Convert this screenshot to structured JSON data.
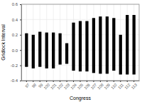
{
  "chart_data": {
    "type": "floating_bar",
    "x_label": "Congress",
    "y_label": "Gridlock Interval",
    "categories": [
      "97",
      "98",
      "99",
      "100",
      "101",
      "102",
      "103",
      "104",
      "105",
      "106",
      "107",
      "108",
      "109",
      "110",
      "111",
      "112",
      "113"
    ],
    "low": [
      -0.22,
      -0.24,
      -0.22,
      -0.24,
      -0.24,
      -0.19,
      -0.18,
      -0.27,
      -0.28,
      -0.28,
      -0.3,
      -0.31,
      -0.31,
      -0.27,
      -0.32,
      -0.32,
      -0.32
    ],
    "high": [
      0.22,
      0.2,
      0.24,
      0.23,
      0.23,
      0.22,
      0.09,
      0.36,
      0.38,
      0.38,
      0.42,
      0.44,
      0.44,
      0.42,
      0.2,
      0.46,
      0.46
    ],
    "color": "#000000",
    "ylim": [
      -0.4,
      0.6
    ],
    "yticks": [
      -0.4,
      -0.2,
      {
        "value": 0,
        "label": "0.0"
      },
      0.2,
      0.4,
      0.6
    ],
    "grid": true
  }
}
